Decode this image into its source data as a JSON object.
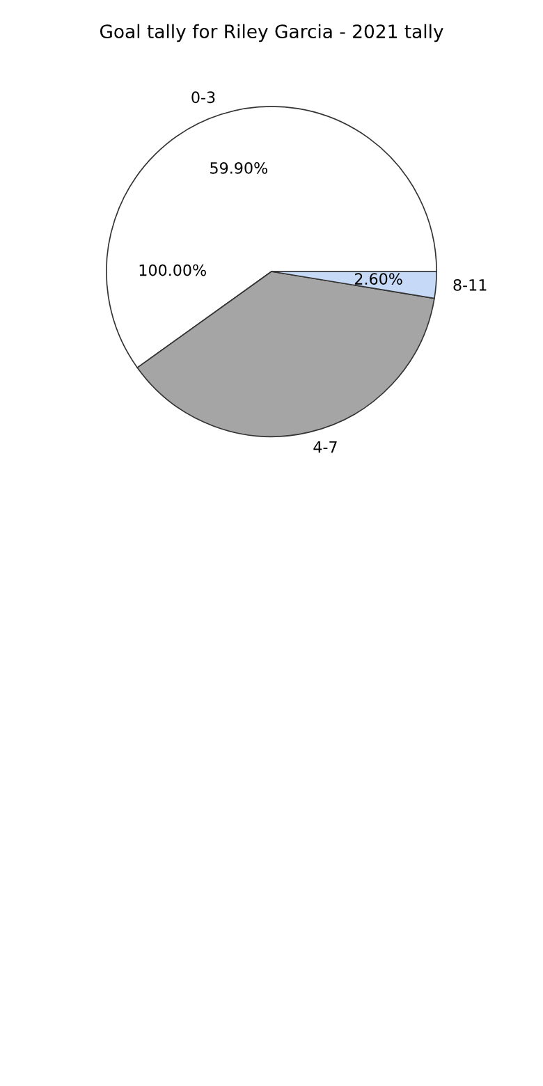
{
  "chart_data": {
    "type": "pie",
    "title": "Goal tally for Riley Garcia - 2021 tally",
    "categories": [
      "0-3",
      "4-7",
      "8-11"
    ],
    "values": [
      59.9,
      37.5,
      2.6
    ],
    "colors": [
      "#ffffff",
      "#a5a5a5",
      "#c6d9f7"
    ],
    "value_labels": [
      "59.90%",
      null,
      "2.60%"
    ],
    "annotations": [
      "100.00%"
    ]
  }
}
